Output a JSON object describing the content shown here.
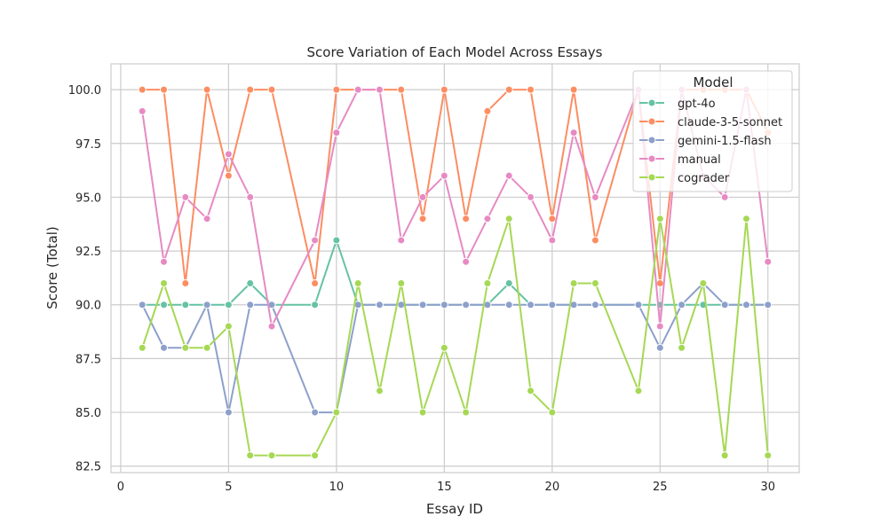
{
  "chart_data": {
    "type": "line",
    "title": "Score Variation of Each Model Across Essays",
    "xlabel": "Essay ID",
    "ylabel": "Score (Total)",
    "xlim": [
      -0.45,
      31.45
    ],
    "ylim": [
      82.2,
      101.2
    ],
    "xticks": [
      0,
      5,
      10,
      15,
      20,
      25,
      30
    ],
    "xtick_labels": [
      "0",
      "5",
      "10",
      "15",
      "20",
      "25",
      "30"
    ],
    "yticks": [
      82.5,
      85.0,
      87.5,
      90.0,
      92.5,
      95.0,
      97.5,
      100.0
    ],
    "ytick_labels": [
      "82.5",
      "85.0",
      "87.5",
      "90.0",
      "92.5",
      "95.0",
      "97.5",
      "100.0"
    ],
    "grid": true,
    "legend_title": "Model",
    "legend_position": "upper-right",
    "x": [
      1,
      2,
      3,
      4,
      5,
      6,
      7,
      9,
      10,
      11,
      12,
      13,
      14,
      15,
      16,
      17,
      18,
      19,
      20,
      21,
      22,
      24,
      25,
      26,
      27,
      28,
      29,
      30
    ],
    "series": [
      {
        "name": "gpt-4o",
        "color": "#66c2a5",
        "values": [
          90,
          90,
          90,
          90,
          90,
          91,
          90,
          90,
          93,
          90,
          90,
          90,
          90,
          90,
          90,
          90,
          91,
          90,
          90,
          90,
          90,
          90,
          90,
          90,
          90,
          90,
          90,
          90
        ]
      },
      {
        "name": "claude-3-5-sonnet",
        "color": "#fc8d62",
        "values": [
          100,
          100,
          91,
          100,
          96,
          100,
          100,
          91,
          100,
          100,
          100,
          100,
          94,
          100,
          94,
          99,
          100,
          100,
          94,
          100,
          93,
          100,
          91,
          100,
          100,
          100,
          100,
          98
        ]
      },
      {
        "name": "gemini-1.5-flash",
        "color": "#8da0cb",
        "values": [
          90,
          88,
          88,
          90,
          85,
          90,
          90,
          85,
          85,
          90,
          90,
          90,
          90,
          90,
          90,
          90,
          90,
          90,
          90,
          90,
          90,
          90,
          88,
          90,
          91,
          90,
          90,
          90
        ]
      },
      {
        "name": "manual",
        "color": "#e78ac3",
        "values": [
          99,
          92,
          95,
          94,
          97,
          95,
          89,
          93,
          98,
          100,
          100,
          93,
          95,
          96,
          92,
          94,
          96,
          95,
          93,
          98,
          95,
          100,
          89,
          100,
          96,
          95,
          100,
          92
        ]
      },
      {
        "name": "cograder",
        "color": "#a6d854",
        "values": [
          88,
          91,
          88,
          88,
          89,
          83,
          83,
          83,
          85,
          91,
          86,
          91,
          85,
          88,
          85,
          91,
          94,
          86,
          85,
          91,
          91,
          86,
          94,
          88,
          91,
          83,
          94,
          83
        ]
      }
    ]
  }
}
